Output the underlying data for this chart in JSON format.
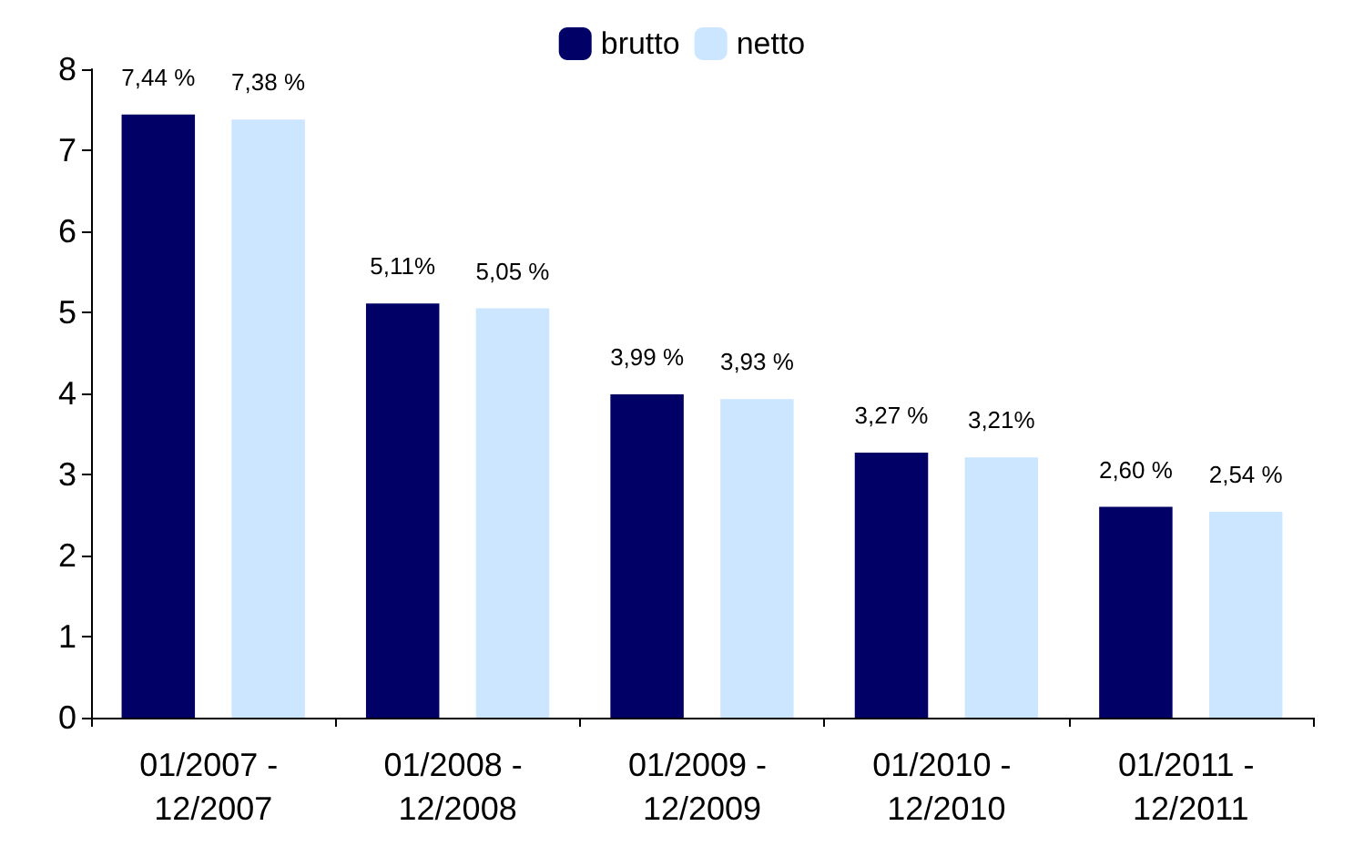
{
  "chart_data": {
    "type": "bar",
    "categories": [
      "01/2007 - 12/2007",
      "01/2008 - 12/2008",
      "01/2009 - 12/2009",
      "01/2010 - 12/2010",
      "01/2011 - 12/2011"
    ],
    "series": [
      {
        "name": "brutto",
        "color": "#000066",
        "values": [
          7.44,
          5.11,
          3.99,
          3.27,
          2.6
        ],
        "value_labels": [
          "7,44 %",
          "5,11%",
          "3,99 %",
          "3,27 %",
          "2,60 %"
        ]
      },
      {
        "name": "netto",
        "color": "#cce6ff",
        "values": [
          7.38,
          5.05,
          3.93,
          3.21,
          2.54
        ],
        "value_labels": [
          "7,38 %",
          "5,05 %",
          "3,93 %",
          "3,21%",
          "2,54 %"
        ]
      }
    ],
    "ylim": [
      0,
      8
    ],
    "yticks": [
      0,
      1,
      2,
      3,
      4,
      5,
      6,
      7,
      8
    ],
    "grid": false,
    "legend": "top"
  }
}
